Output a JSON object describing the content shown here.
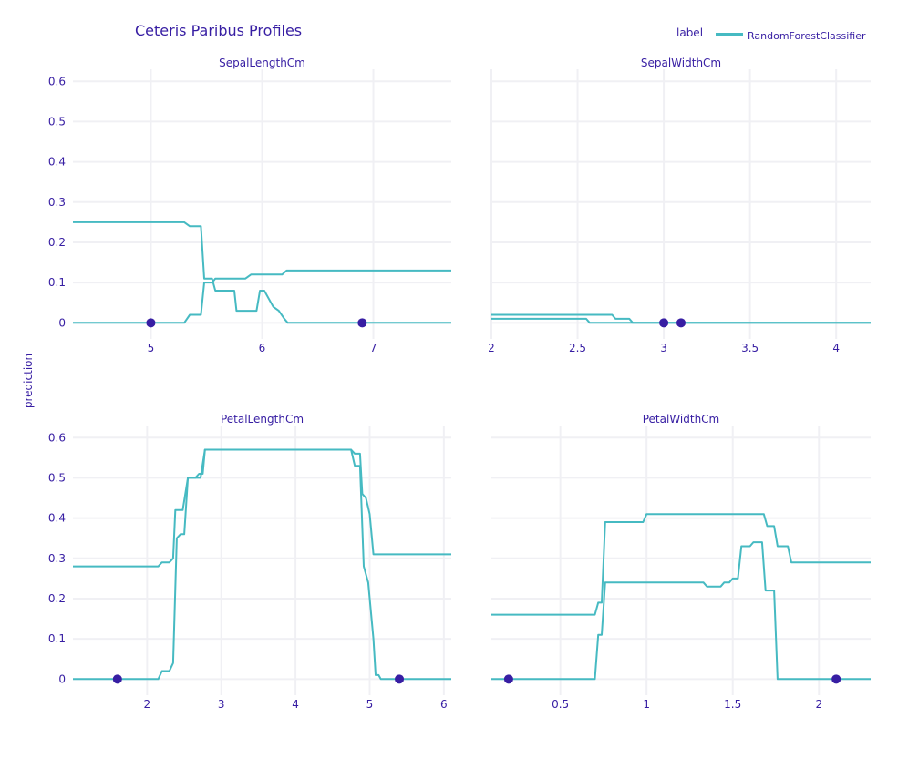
{
  "title": "Ceteris Paribus Profiles",
  "y_axis_label": "prediction",
  "legend": {
    "title": "label",
    "items": [
      {
        "name": "RandomForestClassifier",
        "color": "#46bac2"
      }
    ]
  },
  "colors": {
    "line": "#46bac2",
    "point": "#371ea3",
    "grid": "#f0f0f4",
    "text": "#371ea3"
  },
  "chart_data": [
    {
      "type": "line",
      "title": "SepalLengthCm",
      "xlim": [
        4.3,
        7.7
      ],
      "ylim": [
        -0.04,
        0.63
      ],
      "xticks": [
        5,
        6,
        7
      ],
      "xtick_labels": [
        "5",
        "6",
        "7"
      ],
      "yticks": [
        0,
        0.1,
        0.2,
        0.3,
        0.4,
        0.5,
        0.6
      ],
      "ytick_labels": [
        "0",
        "0.1",
        "0.2",
        "0.3",
        "0.4",
        "0.5",
        "0.6"
      ],
      "series": [
        {
          "name": "RandomForestClassifier",
          "points": [
            [
              4.3,
              0.25
            ],
            [
              5.3,
              0.25
            ],
            [
              5.35,
              0.24
            ],
            [
              5.45,
              0.24
            ],
            [
              5.48,
              0.11
            ],
            [
              5.55,
              0.11
            ],
            [
              5.58,
              0.08
            ],
            [
              5.75,
              0.08
            ],
            [
              5.77,
              0.03
            ],
            [
              5.95,
              0.03
            ],
            [
              5.98,
              0.08
            ],
            [
              6.02,
              0.08
            ],
            [
              6.1,
              0.04
            ],
            [
              6.15,
              0.03
            ],
            [
              6.2,
              0.01
            ],
            [
              6.23,
              0.0
            ],
            [
              7.7,
              0.0
            ]
          ]
        },
        {
          "name": "RandomForestClassifier",
          "points": [
            [
              4.3,
              0.0
            ],
            [
              5.3,
              0.0
            ],
            [
              5.35,
              0.02
            ],
            [
              5.45,
              0.02
            ],
            [
              5.48,
              0.1
            ],
            [
              5.55,
              0.1
            ],
            [
              5.58,
              0.11
            ],
            [
              5.85,
              0.11
            ],
            [
              5.9,
              0.12
            ],
            [
              6.18,
              0.12
            ],
            [
              6.22,
              0.13
            ],
            [
              7.7,
              0.13
            ]
          ]
        }
      ],
      "observations": [
        [
          5.0,
          0.0
        ],
        [
          6.9,
          0.0
        ]
      ]
    },
    {
      "type": "line",
      "title": "SepalWidthCm",
      "xlim": [
        2.0,
        4.2
      ],
      "ylim": [
        -0.04,
        0.63
      ],
      "xticks": [
        2,
        2.5,
        3,
        3.5,
        4
      ],
      "xtick_labels": [
        "2",
        "2.5",
        "3",
        "3.5",
        "4"
      ],
      "yticks": [
        0,
        0.1,
        0.2,
        0.3,
        0.4,
        0.5,
        0.6
      ],
      "ytick_labels": [
        "0",
        "0.1",
        "0.2",
        "0.3",
        "0.4",
        "0.5",
        "0.6"
      ],
      "series": [
        {
          "name": "RandomForestClassifier",
          "points": [
            [
              2.0,
              0.02
            ],
            [
              2.7,
              0.02
            ],
            [
              2.72,
              0.01
            ],
            [
              2.8,
              0.01
            ],
            [
              2.82,
              0.0
            ],
            [
              4.2,
              0.0
            ]
          ]
        },
        {
          "name": "RandomForestClassifier",
          "points": [
            [
              2.0,
              0.01
            ],
            [
              2.55,
              0.01
            ],
            [
              2.57,
              0.0
            ],
            [
              4.2,
              0.0
            ]
          ]
        }
      ],
      "observations": [
        [
          3.0,
          0.0
        ],
        [
          3.1,
          0.0
        ]
      ]
    },
    {
      "type": "line",
      "title": "PetalLengthCm",
      "xlim": [
        1.0,
        6.1
      ],
      "ylim": [
        -0.04,
        0.63
      ],
      "xticks": [
        2,
        3,
        4,
        5,
        6
      ],
      "xtick_labels": [
        "2",
        "3",
        "4",
        "5",
        "6"
      ],
      "yticks": [
        0,
        0.1,
        0.2,
        0.3,
        0.4,
        0.5,
        0.6
      ],
      "ytick_labels": [
        "0",
        "0.1",
        "0.2",
        "0.3",
        "0.4",
        "0.5",
        "0.6"
      ],
      "series": [
        {
          "name": "RandomForestClassifier",
          "points": [
            [
              1.0,
              0.28
            ],
            [
              2.15,
              0.28
            ],
            [
              2.2,
              0.29
            ],
            [
              2.3,
              0.29
            ],
            [
              2.35,
              0.3
            ],
            [
              2.38,
              0.42
            ],
            [
              2.48,
              0.42
            ],
            [
              2.55,
              0.5
            ],
            [
              2.65,
              0.5
            ],
            [
              2.7,
              0.51
            ],
            [
              2.75,
              0.51
            ],
            [
              2.78,
              0.57
            ],
            [
              4.75,
              0.57
            ],
            [
              4.8,
              0.56
            ],
            [
              4.87,
              0.56
            ],
            [
              4.9,
              0.46
            ],
            [
              4.95,
              0.45
            ],
            [
              5.0,
              0.41
            ],
            [
              5.05,
              0.31
            ],
            [
              6.1,
              0.31
            ]
          ]
        },
        {
          "name": "RandomForestClassifier",
          "points": [
            [
              1.0,
              0.0
            ],
            [
              2.15,
              0.0
            ],
            [
              2.2,
              0.02
            ],
            [
              2.3,
              0.02
            ],
            [
              2.35,
              0.04
            ],
            [
              2.4,
              0.35
            ],
            [
              2.45,
              0.36
            ],
            [
              2.5,
              0.36
            ],
            [
              2.55,
              0.5
            ],
            [
              2.72,
              0.5
            ],
            [
              2.78,
              0.57
            ],
            [
              4.75,
              0.57
            ],
            [
              4.8,
              0.53
            ],
            [
              4.87,
              0.53
            ],
            [
              4.92,
              0.28
            ],
            [
              4.98,
              0.24
            ],
            [
              5.05,
              0.1
            ],
            [
              5.08,
              0.01
            ],
            [
              5.12,
              0.01
            ],
            [
              5.15,
              0.0
            ],
            [
              6.1,
              0.0
            ]
          ]
        }
      ],
      "observations": [
        [
          1.6,
          0.0
        ],
        [
          5.4,
          0.0
        ]
      ]
    },
    {
      "type": "line",
      "title": "PetalWidthCm",
      "xlim": [
        0.1,
        2.3
      ],
      "ylim": [
        -0.04,
        0.63
      ],
      "xticks": [
        0.5,
        1,
        1.5,
        2
      ],
      "xtick_labels": [
        "0.5",
        "1",
        "1.5",
        "2"
      ],
      "yticks": [
        0,
        0.1,
        0.2,
        0.3,
        0.4,
        0.5,
        0.6
      ],
      "ytick_labels": [
        "0",
        "0.1",
        "0.2",
        "0.3",
        "0.4",
        "0.5",
        "0.6"
      ],
      "series": [
        {
          "name": "RandomForestClassifier",
          "points": [
            [
              0.1,
              0.16
            ],
            [
              0.7,
              0.16
            ],
            [
              0.72,
              0.19
            ],
            [
              0.74,
              0.19
            ],
            [
              0.76,
              0.39
            ],
            [
              0.98,
              0.39
            ],
            [
              1.0,
              0.41
            ],
            [
              1.68,
              0.41
            ],
            [
              1.7,
              0.38
            ],
            [
              1.74,
              0.38
            ],
            [
              1.76,
              0.33
            ],
            [
              1.82,
              0.33
            ],
            [
              1.84,
              0.29
            ],
            [
              2.3,
              0.29
            ]
          ]
        },
        {
          "name": "RandomForestClassifier",
          "points": [
            [
              0.1,
              0.0
            ],
            [
              0.7,
              0.0
            ],
            [
              0.72,
              0.11
            ],
            [
              0.74,
              0.11
            ],
            [
              0.76,
              0.24
            ],
            [
              1.33,
              0.24
            ],
            [
              1.35,
              0.23
            ],
            [
              1.43,
              0.23
            ],
            [
              1.45,
              0.24
            ],
            [
              1.48,
              0.24
            ],
            [
              1.5,
              0.25
            ],
            [
              1.53,
              0.25
            ],
            [
              1.55,
              0.33
            ],
            [
              1.6,
              0.33
            ],
            [
              1.62,
              0.34
            ],
            [
              1.67,
              0.34
            ],
            [
              1.69,
              0.22
            ],
            [
              1.74,
              0.22
            ],
            [
              1.76,
              0.0
            ],
            [
              2.3,
              0.0
            ]
          ]
        }
      ],
      "observations": [
        [
          0.2,
          0.0
        ],
        [
          2.1,
          0.0
        ]
      ]
    }
  ]
}
